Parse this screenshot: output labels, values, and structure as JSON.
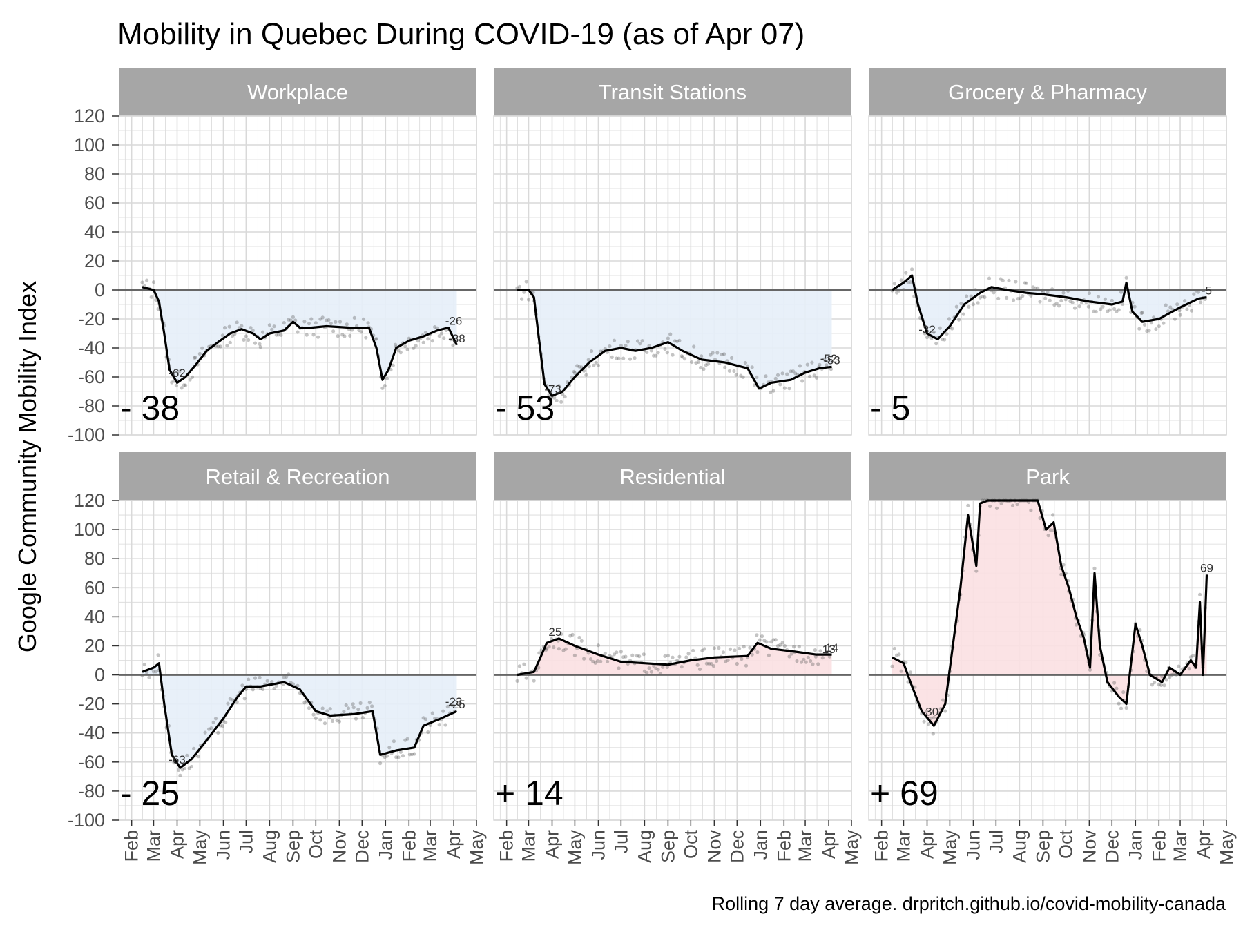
{
  "title": "Mobility in Quebec During COVID-19 (as of Apr 07)",
  "ylabel": "Google Community Mobility Index",
  "caption": "Rolling 7 day average. drpritch.github.io/covid-mobility-canada",
  "colors": {
    "strip": "#a6a6a6",
    "grid": "#d9d9d9",
    "negative_fill": "#e6eef8",
    "positive_fill": "#fbe0e2",
    "line": "#000000",
    "zero_line": "#666666",
    "point": "#555555"
  },
  "chart_data": {
    "type": "line",
    "y_ticks": [
      120,
      100,
      80,
      60,
      40,
      20,
      0,
      -20,
      -40,
      -60,
      -80,
      -100
    ],
    "ylim": [
      -100,
      120
    ],
    "x_ticks": [
      "Feb",
      "Mar",
      "Apr",
      "May",
      "Jun",
      "Jul",
      "Aug",
      "Sep",
      "Oct",
      "Nov",
      "Dec",
      "Jan",
      "Feb",
      "Mar",
      "Apr",
      "May"
    ],
    "x_tick_dates": [
      "2020-02-01",
      "2020-03-01",
      "2020-04-01",
      "2020-05-01",
      "2020-06-01",
      "2020-07-01",
      "2020-08-01",
      "2020-09-01",
      "2020-10-01",
      "2020-11-01",
      "2020-12-01",
      "2021-01-01",
      "2021-02-01",
      "2021-03-01",
      "2021-04-01",
      "2021-05-01"
    ],
    "xlim": [
      "2020-01-15",
      "2021-05-01"
    ],
    "grid": true,
    "panels": [
      {
        "name": "Workplace",
        "current": "- 38",
        "fill_sign": "negative",
        "labels": [
          {
            "x": "2020-04-01",
            "y": -62,
            "text": "-62"
          },
          {
            "x": "2021-04-01",
            "y": -26,
            "text": "-26"
          },
          {
            "x": "2021-04-05",
            "y": -38,
            "text": "-38"
          }
        ],
        "series": [
          {
            "x": "2020-02-15",
            "y": 2
          },
          {
            "x": "2020-03-01",
            "y": 0
          },
          {
            "x": "2020-03-08",
            "y": -8
          },
          {
            "x": "2020-03-15",
            "y": -30
          },
          {
            "x": "2020-03-22",
            "y": -55
          },
          {
            "x": "2020-04-01",
            "y": -64
          },
          {
            "x": "2020-04-12",
            "y": -60
          },
          {
            "x": "2020-04-25",
            "y": -52
          },
          {
            "x": "2020-05-10",
            "y": -42
          },
          {
            "x": "2020-05-25",
            "y": -36
          },
          {
            "x": "2020-06-10",
            "y": -30
          },
          {
            "x": "2020-06-25",
            "y": -27
          },
          {
            "x": "2020-07-10",
            "y": -30
          },
          {
            "x": "2020-07-20",
            "y": -34
          },
          {
            "x": "2020-08-01",
            "y": -30
          },
          {
            "x": "2020-08-20",
            "y": -28
          },
          {
            "x": "2020-09-01",
            "y": -22
          },
          {
            "x": "2020-09-10",
            "y": -26
          },
          {
            "x": "2020-09-25",
            "y": -26
          },
          {
            "x": "2020-10-15",
            "y": -25
          },
          {
            "x": "2020-11-15",
            "y": -26
          },
          {
            "x": "2020-12-10",
            "y": -26
          },
          {
            "x": "2020-12-20",
            "y": -40
          },
          {
            "x": "2020-12-28",
            "y": -62
          },
          {
            "x": "2021-01-05",
            "y": -55
          },
          {
            "x": "2021-01-15",
            "y": -40
          },
          {
            "x": "2021-02-01",
            "y": -35
          },
          {
            "x": "2021-02-20",
            "y": -32
          },
          {
            "x": "2021-03-10",
            "y": -28
          },
          {
            "x": "2021-03-25",
            "y": -26
          },
          {
            "x": "2021-04-05",
            "y": -38
          }
        ]
      },
      {
        "name": "Transit Stations",
        "current": "- 53",
        "fill_sign": "negative",
        "labels": [
          {
            "x": "2020-04-02",
            "y": -73,
            "text": "-73"
          },
          {
            "x": "2021-04-01",
            "y": -52,
            "text": "-52"
          },
          {
            "x": "2021-04-05",
            "y": -53,
            "text": "-53"
          }
        ],
        "series": [
          {
            "x": "2020-02-15",
            "y": 0
          },
          {
            "x": "2020-03-01",
            "y": 0
          },
          {
            "x": "2020-03-08",
            "y": -5
          },
          {
            "x": "2020-03-15",
            "y": -35
          },
          {
            "x": "2020-03-22",
            "y": -65
          },
          {
            "x": "2020-04-01",
            "y": -73
          },
          {
            "x": "2020-04-15",
            "y": -70
          },
          {
            "x": "2020-05-01",
            "y": -60
          },
          {
            "x": "2020-05-20",
            "y": -50
          },
          {
            "x": "2020-06-10",
            "y": -42
          },
          {
            "x": "2020-07-01",
            "y": -40
          },
          {
            "x": "2020-07-20",
            "y": -42
          },
          {
            "x": "2020-08-10",
            "y": -40
          },
          {
            "x": "2020-09-01",
            "y": -36
          },
          {
            "x": "2020-09-20",
            "y": -42
          },
          {
            "x": "2020-10-15",
            "y": -48
          },
          {
            "x": "2020-11-15",
            "y": -50
          },
          {
            "x": "2020-12-15",
            "y": -54
          },
          {
            "x": "2020-12-30",
            "y": -68
          },
          {
            "x": "2021-01-15",
            "y": -64
          },
          {
            "x": "2021-02-10",
            "y": -62
          },
          {
            "x": "2021-03-01",
            "y": -57
          },
          {
            "x": "2021-03-20",
            "y": -54
          },
          {
            "x": "2021-04-05",
            "y": -53
          }
        ]
      },
      {
        "name": "Grocery & Pharmacy",
        "current": "- 5",
        "fill_sign": "negative",
        "labels": [
          {
            "x": "2020-04-01",
            "y": -32,
            "text": "-32"
          },
          {
            "x": "2021-04-05",
            "y": -5,
            "text": "-5"
          }
        ],
        "series": [
          {
            "x": "2020-02-15",
            "y": 0
          },
          {
            "x": "2020-03-01",
            "y": 5
          },
          {
            "x": "2020-03-12",
            "y": 10
          },
          {
            "x": "2020-03-20",
            "y": -10
          },
          {
            "x": "2020-04-01",
            "y": -30
          },
          {
            "x": "2020-04-15",
            "y": -34
          },
          {
            "x": "2020-05-01",
            "y": -25
          },
          {
            "x": "2020-05-20",
            "y": -10
          },
          {
            "x": "2020-06-10",
            "y": -2
          },
          {
            "x": "2020-06-25",
            "y": 2
          },
          {
            "x": "2020-07-15",
            "y": 0
          },
          {
            "x": "2020-08-10",
            "y": -2
          },
          {
            "x": "2020-09-01",
            "y": -3
          },
          {
            "x": "2020-10-01",
            "y": -5
          },
          {
            "x": "2020-11-01",
            "y": -8
          },
          {
            "x": "2020-12-01",
            "y": -10
          },
          {
            "x": "2020-12-15",
            "y": -8
          },
          {
            "x": "2020-12-20",
            "y": 5
          },
          {
            "x": "2020-12-28",
            "y": -15
          },
          {
            "x": "2021-01-10",
            "y": -22
          },
          {
            "x": "2021-02-01",
            "y": -20
          },
          {
            "x": "2021-03-01",
            "y": -12
          },
          {
            "x": "2021-03-25",
            "y": -6
          },
          {
            "x": "2021-04-05",
            "y": -5
          }
        ]
      },
      {
        "name": "Retail & Recreation",
        "current": "- 25",
        "fill_sign": "negative",
        "labels": [
          {
            "x": "2020-04-01",
            "y": -63,
            "text": "-63"
          },
          {
            "x": "2021-04-01",
            "y": -23,
            "text": "-23"
          },
          {
            "x": "2021-04-05",
            "y": -25,
            "text": "-25"
          }
        ],
        "series": [
          {
            "x": "2020-02-15",
            "y": 2
          },
          {
            "x": "2020-03-01",
            "y": 5
          },
          {
            "x": "2020-03-08",
            "y": 8
          },
          {
            "x": "2020-03-15",
            "y": -20
          },
          {
            "x": "2020-03-25",
            "y": -55
          },
          {
            "x": "2020-04-05",
            "y": -64
          },
          {
            "x": "2020-04-20",
            "y": -58
          },
          {
            "x": "2020-05-10",
            "y": -45
          },
          {
            "x": "2020-06-01",
            "y": -30
          },
          {
            "x": "2020-06-20",
            "y": -15
          },
          {
            "x": "2020-07-01",
            "y": -8
          },
          {
            "x": "2020-07-20",
            "y": -8
          },
          {
            "x": "2020-08-20",
            "y": -5
          },
          {
            "x": "2020-09-10",
            "y": -10
          },
          {
            "x": "2020-10-01",
            "y": -25
          },
          {
            "x": "2020-10-20",
            "y": -28
          },
          {
            "x": "2020-11-20",
            "y": -27
          },
          {
            "x": "2020-12-15",
            "y": -25
          },
          {
            "x": "2020-12-25",
            "y": -55
          },
          {
            "x": "2021-01-15",
            "y": -52
          },
          {
            "x": "2021-02-08",
            "y": -50
          },
          {
            "x": "2021-02-20",
            "y": -35
          },
          {
            "x": "2021-03-15",
            "y": -30
          },
          {
            "x": "2021-04-05",
            "y": -25
          }
        ]
      },
      {
        "name": "Residential",
        "current": "+ 14",
        "fill_sign": "positive",
        "labels": [
          {
            "x": "2020-04-05",
            "y": 25,
            "text": "25"
          },
          {
            "x": "2021-04-01",
            "y": 13,
            "text": "13"
          },
          {
            "x": "2021-04-05",
            "y": 14,
            "text": "14"
          }
        ],
        "series": [
          {
            "x": "2020-02-15",
            "y": 0
          },
          {
            "x": "2020-03-08",
            "y": 2
          },
          {
            "x": "2020-03-15",
            "y": 10
          },
          {
            "x": "2020-03-25",
            "y": 22
          },
          {
            "x": "2020-04-10",
            "y": 25
          },
          {
            "x": "2020-05-01",
            "y": 20
          },
          {
            "x": "2020-06-01",
            "y": 14
          },
          {
            "x": "2020-07-01",
            "y": 9
          },
          {
            "x": "2020-08-01",
            "y": 8
          },
          {
            "x": "2020-09-01",
            "y": 7
          },
          {
            "x": "2020-10-01",
            "y": 10
          },
          {
            "x": "2020-11-01",
            "y": 12
          },
          {
            "x": "2020-12-15",
            "y": 13
          },
          {
            "x": "2020-12-28",
            "y": 22
          },
          {
            "x": "2021-01-15",
            "y": 18
          },
          {
            "x": "2021-02-15",
            "y": 16
          },
          {
            "x": "2021-03-15",
            "y": 14
          },
          {
            "x": "2021-04-05",
            "y": 14
          }
        ]
      },
      {
        "name": "Park",
        "current": "+ 69",
        "fill_sign": "positive",
        "labels": [
          {
            "x": "2020-04-05",
            "y": -30,
            "text": "-30"
          },
          {
            "x": "2021-04-05",
            "y": 69,
            "text": "69"
          }
        ],
        "series": [
          {
            "x": "2020-02-15",
            "y": 12
          },
          {
            "x": "2020-03-01",
            "y": 8
          },
          {
            "x": "2020-03-10",
            "y": -5
          },
          {
            "x": "2020-03-25",
            "y": -25
          },
          {
            "x": "2020-04-10",
            "y": -35
          },
          {
            "x": "2020-04-25",
            "y": -20
          },
          {
            "x": "2020-05-05",
            "y": 20
          },
          {
            "x": "2020-05-15",
            "y": 60
          },
          {
            "x": "2020-05-25",
            "y": 110
          },
          {
            "x": "2020-06-05",
            "y": 75
          },
          {
            "x": "2020-06-10",
            "y": 118
          },
          {
            "x": "2020-06-20",
            "y": 120
          },
          {
            "x": "2020-08-25",
            "y": 120
          },
          {
            "x": "2020-09-05",
            "y": 100
          },
          {
            "x": "2020-09-15",
            "y": 105
          },
          {
            "x": "2020-09-25",
            "y": 75
          },
          {
            "x": "2020-10-05",
            "y": 60
          },
          {
            "x": "2020-10-15",
            "y": 40
          },
          {
            "x": "2020-10-25",
            "y": 25
          },
          {
            "x": "2020-11-02",
            "y": 5
          },
          {
            "x": "2020-11-08",
            "y": 70
          },
          {
            "x": "2020-11-15",
            "y": 20
          },
          {
            "x": "2020-11-25",
            "y": -5
          },
          {
            "x": "2020-12-10",
            "y": -15
          },
          {
            "x": "2020-12-20",
            "y": -20
          },
          {
            "x": "2021-01-01",
            "y": 35
          },
          {
            "x": "2021-01-10",
            "y": 20
          },
          {
            "x": "2021-01-20",
            "y": 0
          },
          {
            "x": "2021-02-05",
            "y": -5
          },
          {
            "x": "2021-02-15",
            "y": 5
          },
          {
            "x": "2021-03-01",
            "y": 0
          },
          {
            "x": "2021-03-15",
            "y": 10
          },
          {
            "x": "2021-03-22",
            "y": 5
          },
          {
            "x": "2021-03-27",
            "y": 50
          },
          {
            "x": "2021-03-31",
            "y": 0
          },
          {
            "x": "2021-04-05",
            "y": 69
          }
        ]
      }
    ]
  }
}
